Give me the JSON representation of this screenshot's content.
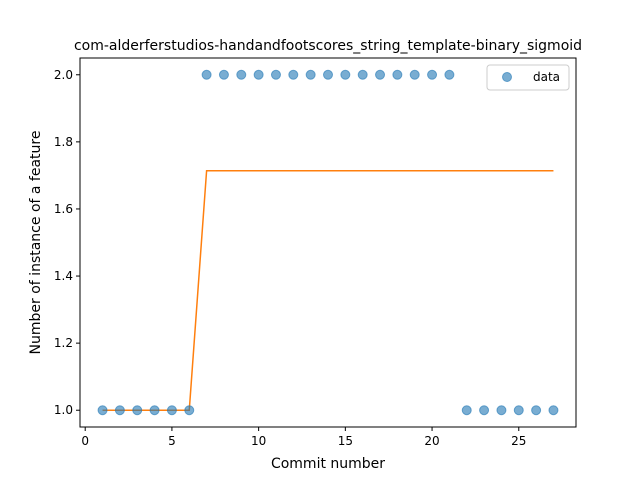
{
  "chart_data": {
    "type": "scatter",
    "title": "com-alderferstudios-handandfootscores_string_template-binary_sigmoid",
    "xlabel": "Commit number",
    "ylabel": "Number of instance of a feature",
    "xlim": [
      -0.3,
      28.3
    ],
    "ylim": [
      0.95,
      2.05
    ],
    "xticks": [
      0,
      5,
      10,
      15,
      20,
      25
    ],
    "yticks": [
      1.0,
      1.2,
      1.4,
      1.6,
      1.8,
      2.0
    ],
    "xtick_labels": [
      "0",
      "5",
      "10",
      "15",
      "20",
      "25"
    ],
    "ytick_labels": [
      "1.0",
      "1.2",
      "1.4",
      "1.6",
      "1.8",
      "2.0"
    ],
    "grid": false,
    "legend_position": "top-right",
    "series": [
      {
        "name": "data",
        "kind": "scatter",
        "color": "#1f77b4",
        "x": [
          1,
          2,
          3,
          4,
          5,
          6,
          7,
          8,
          9,
          10,
          11,
          12,
          13,
          14,
          15,
          16,
          17,
          18,
          19,
          20,
          21,
          22,
          23,
          24,
          25,
          26,
          27
        ],
        "y": [
          1,
          1,
          1,
          1,
          1,
          1,
          2,
          2,
          2,
          2,
          2,
          2,
          2,
          2,
          2,
          2,
          2,
          2,
          2,
          2,
          2,
          1,
          1,
          1,
          1,
          1,
          1
        ]
      },
      {
        "kind": "line",
        "color": "#ff7f0e",
        "x": [
          1,
          2,
          3,
          4,
          5,
          6,
          7,
          8,
          9,
          10,
          11,
          12,
          13,
          14,
          15,
          16,
          17,
          18,
          19,
          20,
          21,
          22,
          23,
          24,
          25,
          26,
          27
        ],
        "y": [
          1.0,
          1.0,
          1.0,
          1.0,
          1.0,
          1.0,
          1.714,
          1.714,
          1.714,
          1.714,
          1.714,
          1.714,
          1.714,
          1.714,
          1.714,
          1.714,
          1.714,
          1.714,
          1.714,
          1.714,
          1.714,
          1.714,
          1.714,
          1.714,
          1.714,
          1.714,
          1.714
        ]
      }
    ]
  }
}
